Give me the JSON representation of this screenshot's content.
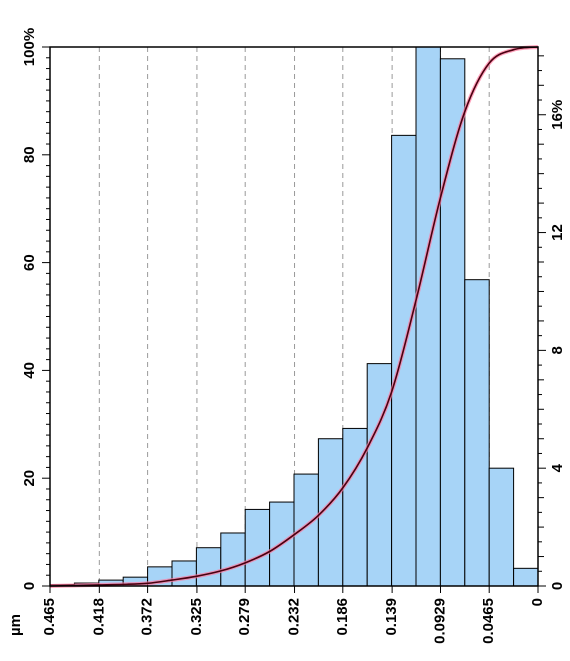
{
  "chart_data": {
    "type": "bar",
    "title": "",
    "x_unit": "µm",
    "left_axis": {
      "min": 0,
      "max": 100,
      "ticks": [
        0,
        20,
        40,
        60,
        80,
        100
      ],
      "top_label": "100%"
    },
    "right_axis": {
      "min": 0,
      "max": 18.3,
      "ticks": [
        0,
        4,
        8,
        12,
        16
      ],
      "top_label": "16%"
    },
    "x_axis": {
      "min": 0.465,
      "max": 0,
      "reversed": true,
      "tick_labels": [
        "0.465",
        "0.418",
        "0.372",
        "0.325",
        "0.279",
        "0.232",
        "0.186",
        "0.139",
        "0.0929",
        "0.0465",
        "0"
      ],
      "tick_values": [
        0.465,
        0.418,
        0.372,
        0.325,
        0.279,
        0.232,
        0.186,
        0.139,
        0.0929,
        0.0465,
        0
      ],
      "gridlines": "dashed-vertical"
    },
    "bins": {
      "lower_edges": [
        0.465,
        0.44175,
        0.4185,
        0.39525,
        0.372,
        0.34875,
        0.3255,
        0.30225,
        0.279,
        0.25575,
        0.2325,
        0.20925,
        0.186,
        0.16275,
        0.1395,
        0.11625,
        0.093,
        0.06975,
        0.0465,
        0.02325
      ],
      "width": 0.02325
    },
    "series": [
      {
        "type": "bar",
        "axis": "right",
        "values": [
          0.05,
          0.1,
          0.2,
          0.3,
          0.65,
          0.85,
          1.3,
          1.8,
          2.6,
          2.85,
          3.8,
          5.0,
          5.35,
          7.55,
          15.3,
          18.3,
          17.9,
          10.4,
          4.0,
          0.6
        ]
      },
      {
        "type": "line",
        "axis": "left",
        "cumulative": true,
        "x": [
          0.465,
          0.44175,
          0.4185,
          0.39525,
          0.372,
          0.34875,
          0.3255,
          0.30225,
          0.279,
          0.25575,
          0.2325,
          0.20925,
          0.186,
          0.16275,
          0.1395,
          0.11625,
          0.093,
          0.06975,
          0.0465,
          0.02325,
          0
        ],
        "values": [
          0,
          0.1,
          0.2,
          0.3,
          0.5,
          1.1,
          1.8,
          2.8,
          4.3,
          6.4,
          9.5,
          13.1,
          18.2,
          25.6,
          36.0,
          53.0,
          72.0,
          88.0,
          97.0,
          99.5,
          100
        ]
      }
    ],
    "colors": {
      "bar_fill": "#a7d4f7",
      "bar_edge": "#000000",
      "cumulative_line": "#4a0010",
      "cumulative_glow": "#ff7aa0",
      "grid": "#9a9a9a"
    },
    "grid": true,
    "orientation": "rotated-90-clockwise"
  }
}
